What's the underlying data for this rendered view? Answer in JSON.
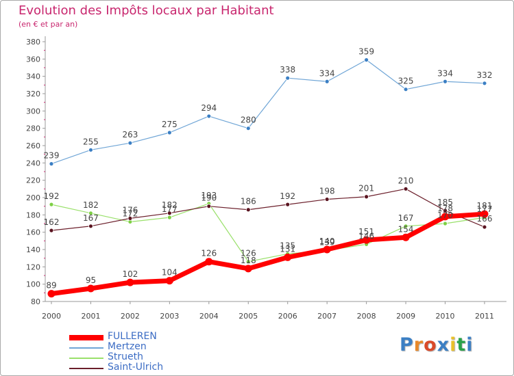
{
  "title": "Evolution des Impôts locaux par Habitant",
  "subtitle": "(en € et par an)",
  "chart_data": {
    "type": "line",
    "x": [
      "2000",
      "2001",
      "2002",
      "2003",
      "2004",
      "2005",
      "2006",
      "2007",
      "2008",
      "2009",
      "2010",
      "2011"
    ],
    "ylim": [
      80,
      380
    ],
    "yticks": [
      80,
      100,
      120,
      140,
      160,
      180,
      200,
      220,
      240,
      260,
      280,
      300,
      320,
      340,
      360,
      380
    ],
    "grid": false,
    "legend_position": "bottom-left",
    "series": [
      {
        "name": "FULLEREN",
        "color": "#ff0000",
        "values": [
          89,
          95,
          102,
          104,
          126,
          118,
          131,
          140,
          151,
          154,
          178,
          181
        ]
      },
      {
        "name": "Mertzen",
        "color": "#6fa5d6",
        "values": [
          239,
          255,
          263,
          275,
          294,
          280,
          338,
          334,
          359,
          325,
          334,
          332
        ]
      },
      {
        "name": "Strueth",
        "color": "#99e06a",
        "values": [
          192,
          182,
          172,
          177,
          193,
          126,
          135,
          139,
          146,
          167,
          170,
          177
        ]
      },
      {
        "name": "Saint-Ulrich",
        "color": "#6b1e2a",
        "values": [
          162,
          167,
          176,
          182,
          190,
          186,
          192,
          198,
          201,
          210,
          185,
          166
        ]
      }
    ]
  },
  "logo": {
    "text": "Proxiti"
  }
}
